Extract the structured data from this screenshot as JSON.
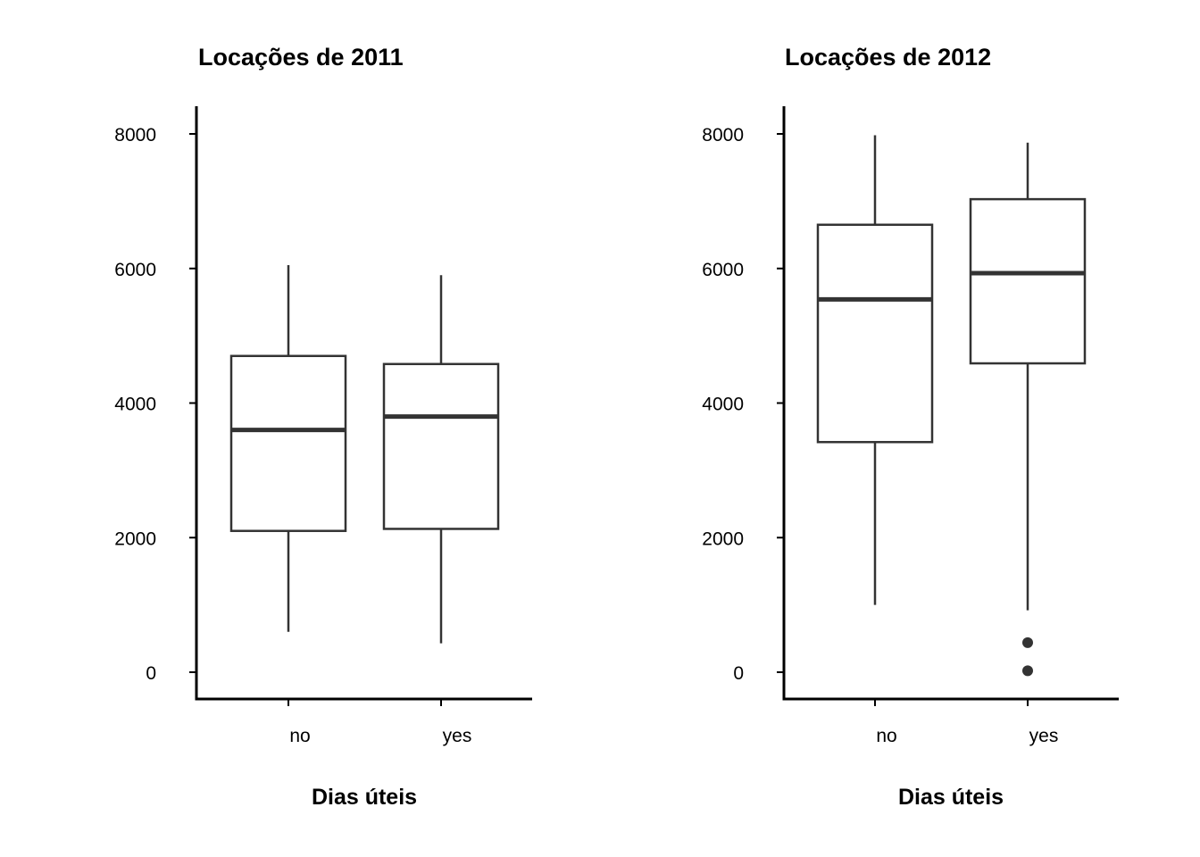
{
  "chart_data": [
    {
      "type": "boxplot",
      "title": "Locações de 2011",
      "xlabel": "Dias úteis",
      "ylabel": "",
      "ylim": [
        -400,
        8400
      ],
      "yticks": [
        0,
        2000,
        4000,
        6000,
        8000
      ],
      "categories": [
        "no",
        "yes"
      ],
      "boxes": [
        {
          "category": "no",
          "whisker_low": 600,
          "q1": 2100,
          "median": 3600,
          "q3": 4700,
          "whisker_high": 6050,
          "outliers": []
        },
        {
          "category": "yes",
          "whisker_low": 430,
          "q1": 2130,
          "median": 3800,
          "q3": 4580,
          "whisker_high": 5900,
          "outliers": []
        }
      ],
      "grid": false,
      "legend": "none"
    },
    {
      "type": "boxplot",
      "title": "Locações de 2012",
      "xlabel": "Dias úteis",
      "ylabel": "",
      "ylim": [
        -400,
        8400
      ],
      "yticks": [
        0,
        2000,
        4000,
        6000,
        8000
      ],
      "categories": [
        "no",
        "yes"
      ],
      "boxes": [
        {
          "category": "no",
          "whisker_low": 1000,
          "q1": 3420,
          "median": 5540,
          "q3": 6650,
          "whisker_high": 7980,
          "outliers": []
        },
        {
          "category": "yes",
          "whisker_low": 920,
          "q1": 4590,
          "median": 5930,
          "q3": 7030,
          "whisker_high": 7870,
          "outliers": [
            440,
            22
          ]
        }
      ],
      "grid": false,
      "legend": "none"
    }
  ],
  "colors": {
    "box_stroke": "#333333",
    "axis": "#000000",
    "background": "#ffffff"
  }
}
